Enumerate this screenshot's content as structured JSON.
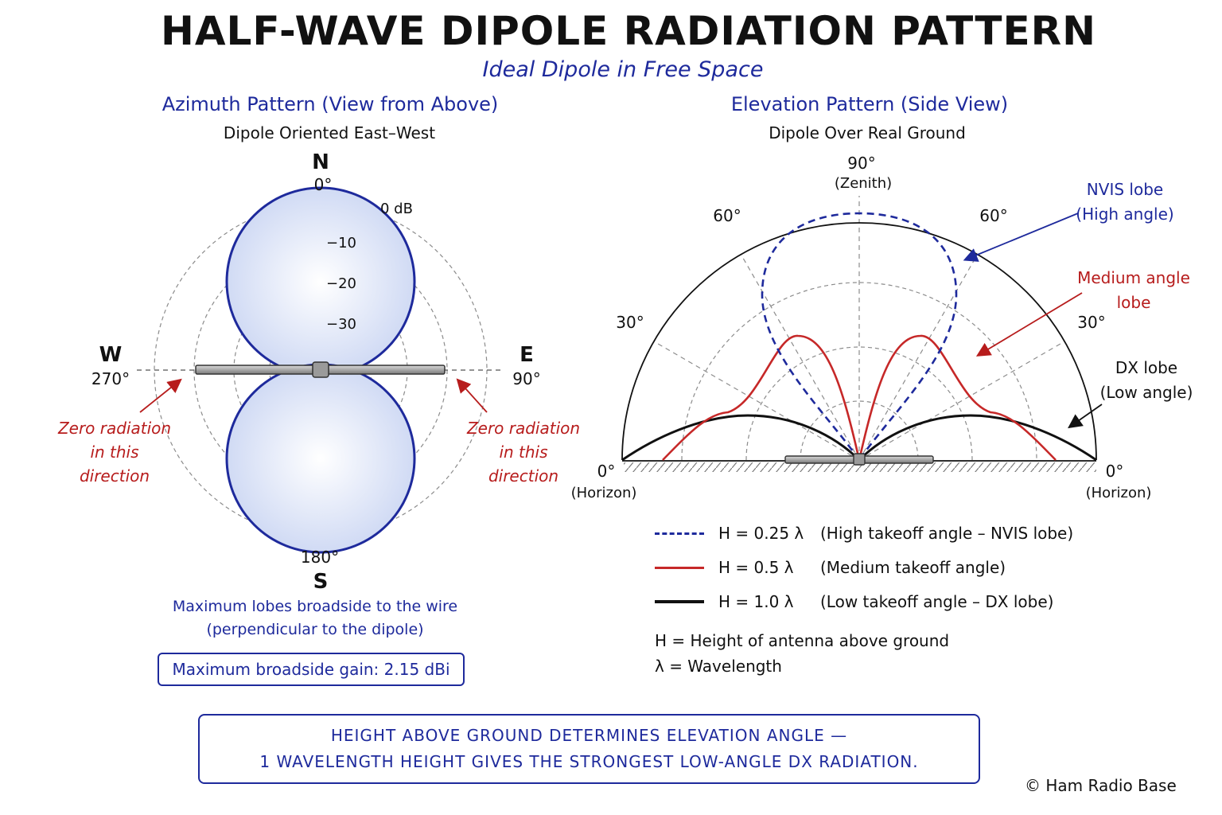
{
  "title": "HALF-WAVE DIPOLE RADIATION PATTERN",
  "subtitle": "Ideal Dipole in Free Space",
  "azimuth": {
    "title": "Azimuth Pattern (View from Above)",
    "subtitle": "Dipole Oriented East–West",
    "compass": {
      "north_letter": "N",
      "north_deg": "0°",
      "south_deg": "180°",
      "south_letter": "S",
      "west_letter": "W",
      "west_deg": "270°",
      "east_letter": "E",
      "east_deg": "90°"
    },
    "db_rings": [
      "0 dB",
      "−10",
      "−20",
      "−30"
    ],
    "zero_note_left": [
      "Zero radiation",
      "in this",
      "direction"
    ],
    "zero_note_right": [
      "Zero radiation",
      "in this",
      "direction"
    ],
    "note_lines": [
      "Maximum lobes broadside to the wire",
      "(perpendicular to the dipole)"
    ],
    "gain_box": "Maximum broadside gain: 2.15 dBi",
    "lobe_color": "#1e2a9c"
  },
  "elevation": {
    "title": "Elevation Pattern (Side View)",
    "subtitle": "Dipole Over Real Ground",
    "angle_labels": {
      "zenith_deg": "90°",
      "zenith_note": "(Zenith)",
      "left_60": "60°",
      "right_60": "60°",
      "left_30": "30°",
      "right_30": "30°",
      "left_0": "0°",
      "left_0_note": "(Horizon)",
      "right_0": "0°",
      "right_0_note": "(Horizon)"
    },
    "callouts": {
      "nvis": [
        "NVIS lobe",
        "(High angle)"
      ],
      "medium": [
        "Medium angle",
        "lobe"
      ],
      "dx": [
        "DX lobe",
        "(Low angle)"
      ]
    },
    "legend": [
      {
        "height": "H = 0.25 λ",
        "desc": "(High takeoff angle – NVIS lobe)",
        "color": "#1e2a9c",
        "style": "dashed"
      },
      {
        "height": "H = 0.5 λ",
        "desc": "(Medium takeoff angle)",
        "color": "#c62828",
        "style": "solid"
      },
      {
        "height": "H = 1.0 λ",
        "desc": "(Low takeoff angle – DX lobe)",
        "color": "#111111",
        "style": "solid"
      }
    ],
    "definitions": [
      "H = Height of antenna above ground",
      "λ = Wavelength"
    ]
  },
  "bottom_box": [
    "HEIGHT ABOVE GROUND DETERMINES ELEVATION ANGLE —",
    "1 WAVELENGTH HEIGHT GIVES THE STRONGEST LOW-ANGLE DX RADIATION."
  ],
  "copyright": "© Ham Radio Base"
}
